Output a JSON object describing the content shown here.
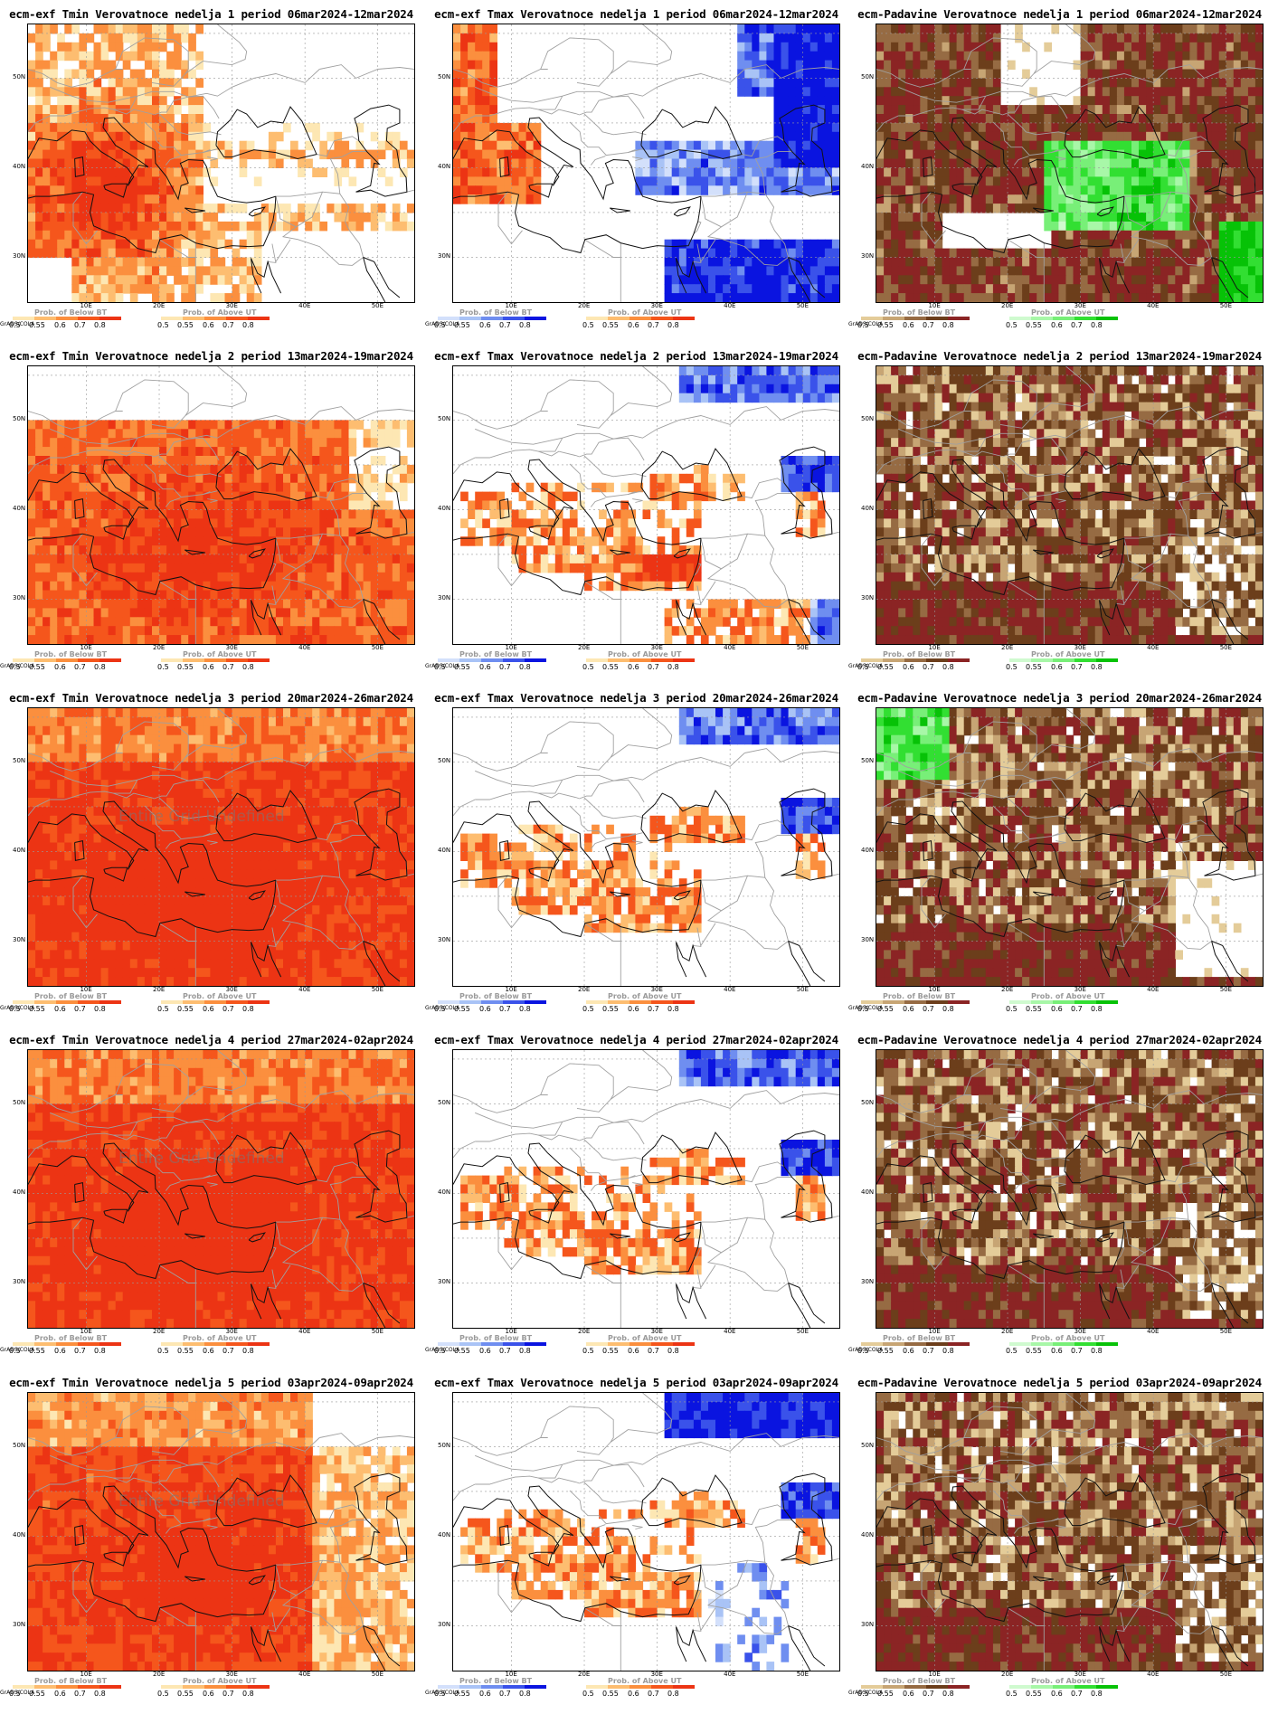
{
  "credit": "GrADS/COLA",
  "lat_labels": [
    "50N",
    "40N",
    "30N"
  ],
  "lon_labels": [
    "10E",
    "20E",
    "30E",
    "40E",
    "50E"
  ],
  "undefined_text": "Entire Grid Undefined",
  "tick_labels": [
    "0.5",
    "0.55",
    "0.6",
    "0.7",
    "0.8"
  ],
  "legend_titles": {
    "below": "Prob. of Below BT",
    "above": "Prob. of Above UT"
  },
  "colors": {
    "tmin_above": [
      "#fde7b3",
      "#fdbd70",
      "#fb8f3e",
      "#f5561c",
      "#ec3414"
    ],
    "tmax_above": [
      "#fde7b3",
      "#fdbd70",
      "#fb8f3e",
      "#f5561c",
      "#ec3414"
    ],
    "tmax_below": [
      "#d3e0fb",
      "#a9c3f6",
      "#6f8ef0",
      "#3a52ea",
      "#0a14e0"
    ],
    "prcp_below": [
      "#e4cc99",
      "#c7a574",
      "#966b43",
      "#6c3e1b",
      "#8b2424"
    ],
    "prcp_above": [
      "#cffacf",
      "#a8f7a8",
      "#78ef78",
      "#32df32",
      "#07c207"
    ],
    "border": "#a0a0a0",
    "coast": "#111111"
  },
  "rows": [
    {
      "week": 1,
      "panels": [
        {
          "title": "ecm-exf Tmin Verovatnoce nedelja 1 period 06mar2024-12mar2024",
          "variable": "tmin",
          "undefined": false
        },
        {
          "title": "ecm-exf Tmax Verovatnoce nedelja 1 period 06mar2024-12mar2024",
          "variable": "tmax",
          "undefined": false
        },
        {
          "title": "ecm-Padavine Verovatnoce nedelja 1 period 06mar2024-12mar2024",
          "variable": "prcp",
          "undefined": false
        }
      ]
    },
    {
      "week": 2,
      "panels": [
        {
          "title": "ecm-exf Tmin Verovatnoce nedelja 2 period 13mar2024-19mar2024",
          "variable": "tmin",
          "undefined": false
        },
        {
          "title": "ecm-exf Tmax Verovatnoce nedelja 2 period 13mar2024-19mar2024",
          "variable": "tmax",
          "undefined": false
        },
        {
          "title": "ecm-Padavine Verovatnoce nedelja 2 period 13mar2024-19mar2024",
          "variable": "prcp",
          "undefined": false
        }
      ]
    },
    {
      "week": 3,
      "panels": [
        {
          "title": "ecm-exf Tmin Verovatnoce nedelja 3 period 20mar2024-26mar2024",
          "variable": "tmin",
          "undefined": true
        },
        {
          "title": "ecm-exf Tmax Verovatnoce nedelja 3 period 20mar2024-26mar2024",
          "variable": "tmax",
          "undefined": false
        },
        {
          "title": "ecm-Padavine Verovatnoce nedelja 3 period 20mar2024-26mar2024",
          "variable": "prcp",
          "undefined": false
        }
      ]
    },
    {
      "week": 4,
      "panels": [
        {
          "title": "ecm-exf Tmin Verovatnoce nedelja 4 period 27mar2024-02apr2024",
          "variable": "tmin",
          "undefined": true
        },
        {
          "title": "ecm-exf Tmax Verovatnoce nedelja 4 period 27mar2024-02apr2024",
          "variable": "tmax",
          "undefined": false
        },
        {
          "title": "ecm-Padavine Verovatnoce nedelja 4 period 27mar2024-02apr2024",
          "variable": "prcp",
          "undefined": false
        }
      ]
    },
    {
      "week": 5,
      "panels": [
        {
          "title": "ecm-exf Tmin Verovatnoce nedelja 5 period 03apr2024-09apr2024",
          "variable": "tmin",
          "undefined": true
        },
        {
          "title": "ecm-exf Tmax Verovatnoce nedelja 5 period 03apr2024-09apr2024",
          "variable": "tmax",
          "undefined": false
        },
        {
          "title": "ecm-Padavine Verovatnoce nedelja 5 period 03apr2024-09apr2024",
          "variable": "prcp",
          "undefined": false
        }
      ]
    }
  ]
}
